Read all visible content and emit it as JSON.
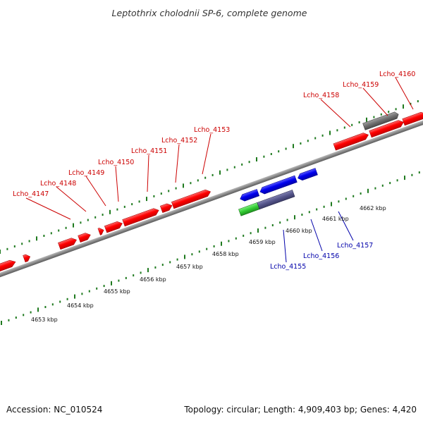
{
  "title": "Leptothrix cholodnii SP-6, complete genome",
  "footer": {
    "accession": "Accession: NC_010524",
    "summary": "Topology: circular; Length: 4,909,403 bp; Genes: 4,420"
  },
  "colors": {
    "forward_gene": "#ff0000",
    "reverse_gene": "#0000ee",
    "green_gene": "#33cc33",
    "purple_gene": "#55558a",
    "gray_gene": "#707070",
    "backbone": "#8a8a8a",
    "ticks": "#1f7a1f",
    "label_forward": "#cc0000",
    "label_reverse": "#0000aa"
  },
  "scale_ticks": [
    "4653 kbp",
    "4654 kbp",
    "4655 kbp",
    "4656 kbp",
    "4657 kbp",
    "4658 kbp",
    "4659 kbp",
    "4660 kbp",
    "4661 kbp",
    "4662 kbp"
  ],
  "forward_gene_labels": [
    "Lcho_4147",
    "Lcho_4148",
    "Lcho_4149",
    "Lcho_4150",
    "Lcho_4151",
    "Lcho_4152",
    "Lcho_4153",
    "Lcho_4158",
    "Lcho_4159",
    "Lcho_4160"
  ],
  "reverse_gene_labels": [
    "Lcho_4155",
    "Lcho_4156",
    "Lcho_4157"
  ]
}
